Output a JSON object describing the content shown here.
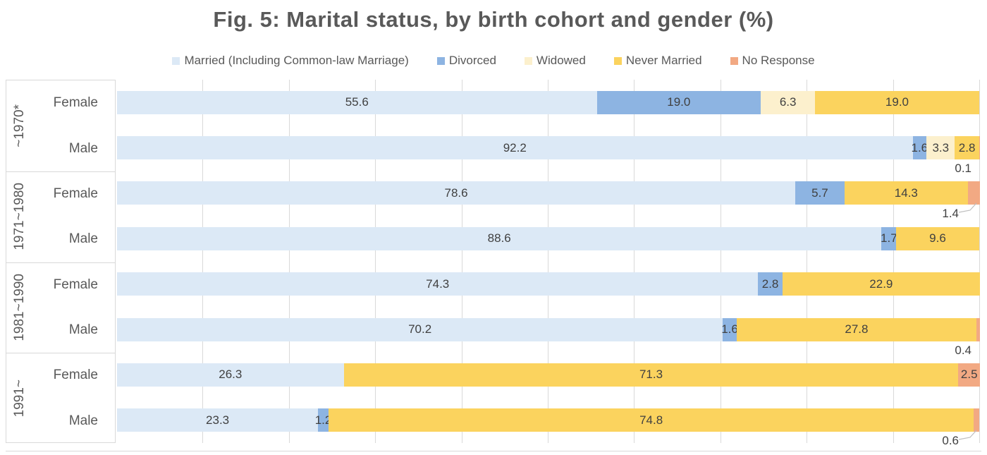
{
  "title": "Fig. 5: Marital status, by birth cohort and gender  (%)",
  "colors": {
    "title_text": "#595959",
    "axis_text": "#595959",
    "value_label": "#404040",
    "gridline": "#D9D9D9",
    "leader_line": "#BFBFBF"
  },
  "chart_data": {
    "type": "bar",
    "stacked": true,
    "orientation": "horizontal",
    "title": "Fig. 5: Marital status, by birth cohort and gender  (%)",
    "value_unit": "%",
    "xlim": [
      0,
      100
    ],
    "gridline_step": 10,
    "grid": true,
    "legend_position": "top",
    "series": [
      {
        "id": "married",
        "label": "Married (Including Common-law Marriage)",
        "color": "#DCE9F6"
      },
      {
        "id": "divorced",
        "label": "Divorced",
        "color": "#8DB4E2"
      },
      {
        "id": "widowed",
        "label": "Widowed",
        "color": "#FCF0CD"
      },
      {
        "id": "never_married",
        "label": "Never Married",
        "color": "#FBD35E"
      },
      {
        "id": "no_response",
        "label": "No Response",
        "color": "#F2A983"
      }
    ],
    "groups": [
      {
        "cohort": "~1970*",
        "bars": [
          {
            "gender": "Female",
            "segments": [
              {
                "series": "married",
                "value": 55.6,
                "label": "55.6"
              },
              {
                "series": "divorced",
                "value": 19.0,
                "label": "19.0"
              },
              {
                "series": "widowed",
                "value": 6.3,
                "label": "6.3"
              },
              {
                "series": "never_married",
                "value": 19.0,
                "label": "19.0"
              }
            ]
          },
          {
            "gender": "Male",
            "segments": [
              {
                "series": "married",
                "value": 92.2,
                "label": "92.2"
              },
              {
                "series": "divorced",
                "value": 1.6,
                "label": "1.6"
              },
              {
                "series": "widowed",
                "value": 3.3,
                "label": "3.3"
              },
              {
                "series": "never_married",
                "value": 2.8,
                "label": "2.8"
              },
              {
                "series": "no_response",
                "value": 0.1,
                "label": "0.1",
                "label_position": "below"
              }
            ]
          }
        ]
      },
      {
        "cohort": "1971~1980",
        "bars": [
          {
            "gender": "Female",
            "segments": [
              {
                "series": "married",
                "value": 78.6,
                "label": "78.6"
              },
              {
                "series": "divorced",
                "value": 5.7,
                "label": "5.7"
              },
              {
                "series": "never_married",
                "value": 14.3,
                "label": "14.3"
              },
              {
                "series": "no_response",
                "value": 1.4,
                "label": "1.4",
                "label_position": "below-leader"
              }
            ]
          },
          {
            "gender": "Male",
            "segments": [
              {
                "series": "married",
                "value": 88.6,
                "label": "88.6"
              },
              {
                "series": "divorced",
                "value": 1.7,
                "label": "1.7"
              },
              {
                "series": "never_married",
                "value": 9.6,
                "label": "9.6"
              }
            ]
          }
        ]
      },
      {
        "cohort": "1981~1990",
        "bars": [
          {
            "gender": "Female",
            "segments": [
              {
                "series": "married",
                "value": 74.3,
                "label": "74.3"
              },
              {
                "series": "divorced",
                "value": 2.8,
                "label": "2.8"
              },
              {
                "series": "never_married",
                "value": 22.9,
                "label": "22.9"
              }
            ]
          },
          {
            "gender": "Male",
            "segments": [
              {
                "series": "married",
                "value": 70.2,
                "label": "70.2"
              },
              {
                "series": "divorced",
                "value": 1.6,
                "label": "1.6"
              },
              {
                "series": "never_married",
                "value": 27.8,
                "label": "27.8"
              },
              {
                "series": "no_response",
                "value": 0.4,
                "label": "0.4",
                "label_position": "below"
              }
            ]
          }
        ]
      },
      {
        "cohort": "1991~",
        "bars": [
          {
            "gender": "Female",
            "segments": [
              {
                "series": "married",
                "value": 26.3,
                "label": "26.3"
              },
              {
                "series": "never_married",
                "value": 71.3,
                "label": "71.3"
              },
              {
                "series": "no_response",
                "value": 2.5,
                "label": "2.5"
              }
            ]
          },
          {
            "gender": "Male",
            "segments": [
              {
                "series": "married",
                "value": 23.3,
                "label": "23.3"
              },
              {
                "series": "divorced",
                "value": 1.2,
                "label": "1.2"
              },
              {
                "series": "never_married",
                "value": 74.8,
                "label": "74.8"
              },
              {
                "series": "no_response",
                "value": 0.6,
                "label": "0.6",
                "label_position": "below-leader"
              }
            ]
          }
        ]
      }
    ]
  }
}
